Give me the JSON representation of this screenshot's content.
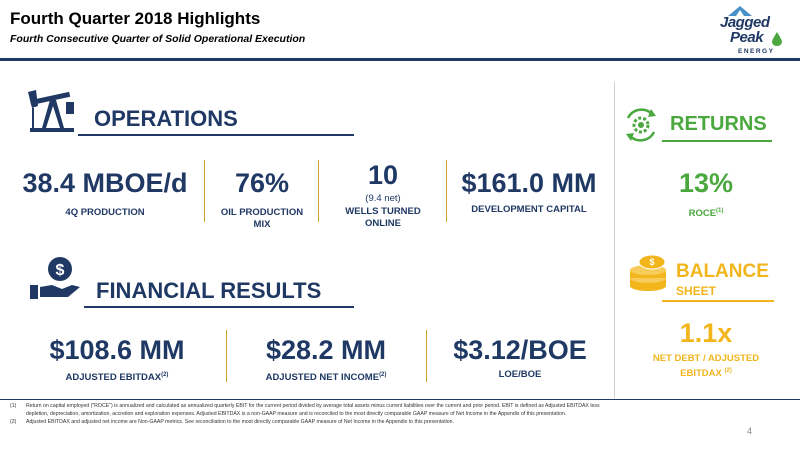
{
  "header": {
    "title": "Fourth Quarter 2018 Highlights",
    "subtitle": "Fourth Consecutive Quarter of Solid Operational Execution",
    "logo_line1": "Jagged",
    "logo_line2": "Peak",
    "logo_line3": "ENERGY"
  },
  "operations": {
    "title": "OPERATIONS",
    "icon": "pumpjack-icon",
    "metrics": [
      {
        "value": "38.4 MBOE/d",
        "label": "4Q PRODUCTION"
      },
      {
        "value": "76%",
        "label": "OIL PRODUCTION MIX"
      },
      {
        "value": "10",
        "note": "(9.4 net)",
        "label": "WELLS TURNED ONLINE"
      },
      {
        "value": "$161.0 MM",
        "label": "DEVELOPMENT CAPITAL"
      }
    ]
  },
  "returns": {
    "title": "RETURNS",
    "icon": "gear-cycle-icon",
    "value": "13%",
    "label": "ROCE",
    "label_sup": "(1)"
  },
  "financial": {
    "title": "FINANCIAL RESULTS",
    "icon": "dollar-hand-icon",
    "metrics": [
      {
        "value": "$108.6 MM",
        "label": "ADJUSTED EBITDAX",
        "sup": "(2)"
      },
      {
        "value": "$28.2 MM",
        "label": "ADJUSTED NET INCOME",
        "sup": "(2)"
      },
      {
        "value": "$3.12/BOE",
        "label": "LOE/BOE",
        "sup": ""
      }
    ]
  },
  "balance": {
    "title1": "BALANCE",
    "title2": "SHEET",
    "icon": "coin-stack-icon",
    "value": "1.1x",
    "label1": "NET DEBT / ADJUSTED",
    "label2": "EBITDAX",
    "label_sup": "(2)"
  },
  "footnotes": [
    {
      "num": "(1)",
      "text": "Return on capital employed (\"ROCE\") is annualized and calculated as annualized quarterly EBIT for the current period divided by average total assets minus current liabilities over the current and prior period. EBIT is defined as Adjusted EBITDAX less depletion, depreciation, amortization, accretion and exploration expenses. Adjusted EBITDAX is a non-GAAP measure and is reconciled to the most directly comparable GAAP measure of Net Income in the Appendix of this presentation."
    },
    {
      "num": "(2)",
      "text": "Adjusted EBITDAX and adjusted net income are Non-GAAP metrics. See reconciliation to the most directly comparable GAAP measure of Net Income in the Appendix to this presentation."
    }
  ],
  "page_number": "4",
  "colors": {
    "navy": "#1f3864",
    "green": "#4aa83e",
    "gold": "#f2b51c"
  }
}
